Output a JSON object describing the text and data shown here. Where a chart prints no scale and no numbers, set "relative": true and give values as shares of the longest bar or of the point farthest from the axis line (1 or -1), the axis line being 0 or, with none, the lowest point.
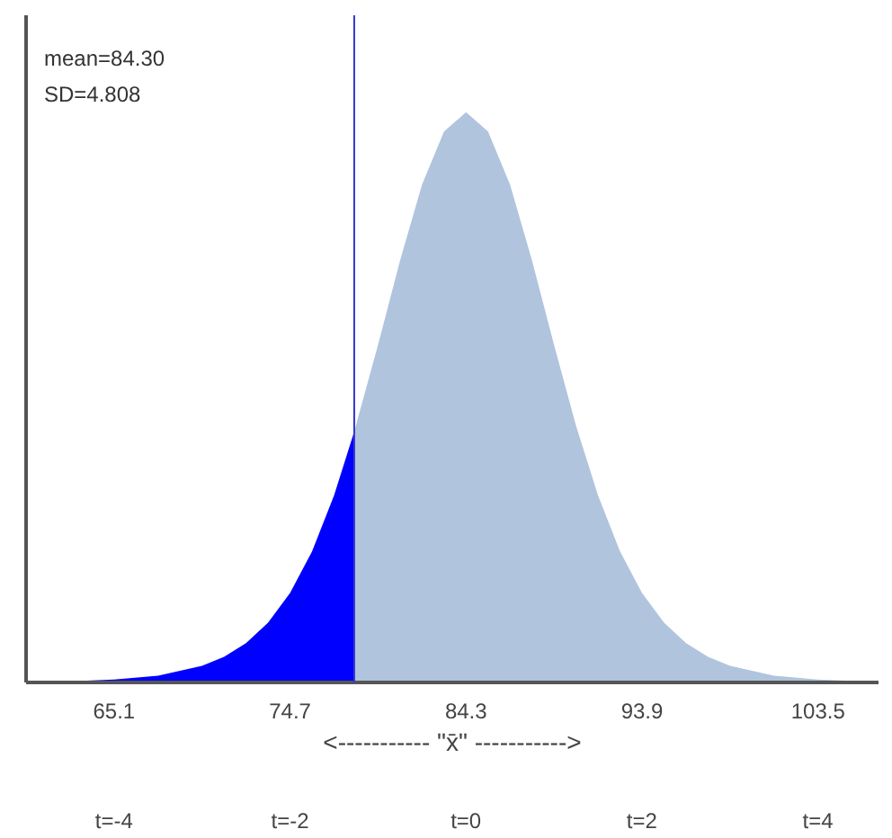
{
  "chart_data": {
    "type": "area",
    "relative": true,
    "xlabel": "<----------- \"x̄\" ----------->",
    "annotations": [
      "mean=84.30",
      "SD=4.808"
    ],
    "xlim": [
      60.3,
      106.8
    ],
    "xticks": [
      65.1,
      74.7,
      84.3,
      93.9,
      103.5
    ],
    "x2lim": [
      -5,
      4.69
    ],
    "x2ticks": [
      {
        "value": -4,
        "label": "t=-4"
      },
      {
        "value": -2,
        "label": "t=-2"
      },
      {
        "value": 0,
        "label": "t=0"
      },
      {
        "value": 2,
        "label": "t=2"
      },
      {
        "value": 4,
        "label": "t=4"
      }
    ],
    "series": [
      {
        "color": "#0000ff",
        "x": [
          60.3,
          62.7,
          65.1,
          67.5,
          69.9,
          71.1,
          72.3,
          73.5,
          74.7,
          75.9,
          77.1,
          78.2
        ],
        "values": [
          0.001,
          0.002,
          0.005,
          0.012,
          0.029,
          0.045,
          0.069,
          0.105,
          0.157,
          0.23,
          0.328,
          0.44
        ]
      },
      {
        "color": "#b0c4de",
        "x": [
          78.2,
          79.5,
          80.7,
          81.9,
          83.1,
          84.3,
          85.5,
          86.7,
          87.9,
          89.1,
          90.3,
          91.5,
          92.7,
          93.9,
          95.1,
          96.3,
          97.5,
          98.7,
          101.1,
          103.5,
          105.9,
          106.8
        ],
        "values": [
          0.44,
          0.592,
          0.74,
          0.873,
          0.966,
          1,
          0.966,
          0.873,
          0.74,
          0.592,
          0.45,
          0.328,
          0.23,
          0.157,
          0.105,
          0.069,
          0.045,
          0.029,
          0.012,
          0.005,
          0.002,
          0.002
        ]
      }
    ],
    "ref_lines": [
      {
        "axis": "x",
        "value": 78.2,
        "color": "#3333cc"
      }
    ],
    "grid": false
  }
}
